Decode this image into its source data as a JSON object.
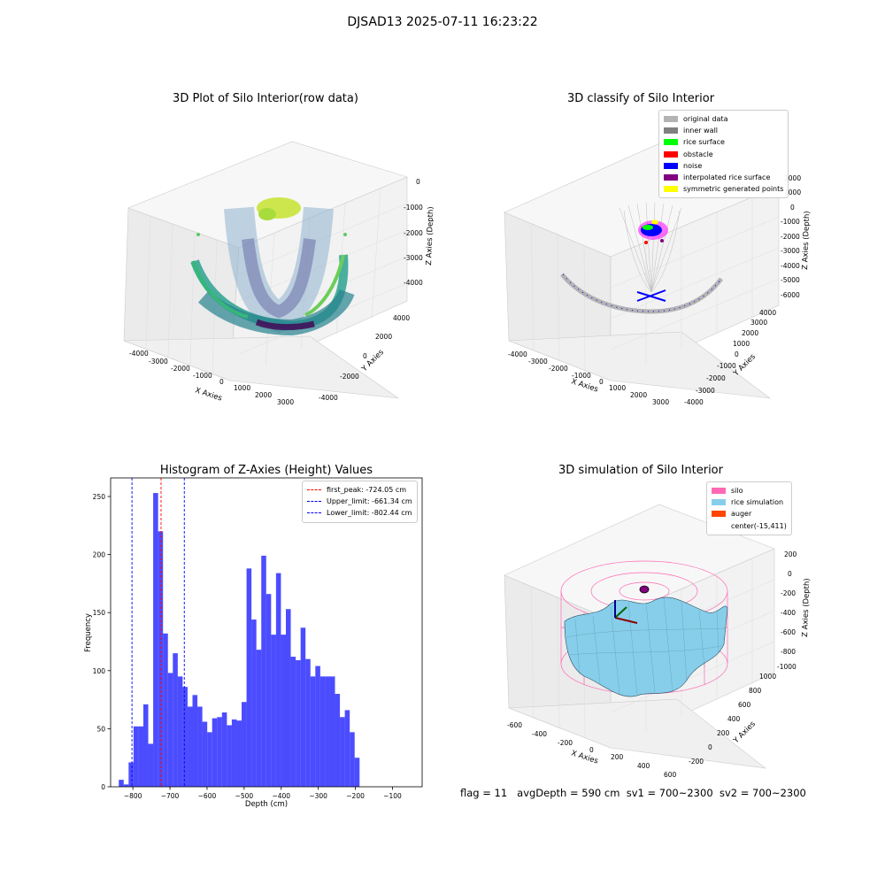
{
  "figure": {
    "suptitle": "DJSAD13 2025-07-11 16:23:22",
    "footer": {
      "flag": "flag = 11",
      "avg": "avgDepth = 590 cm",
      "sv1": "sv1 = 700~2300",
      "sv2": "sv2 = 700~2300"
    }
  },
  "panels": {
    "raw": {
      "title": "3D Plot of Silo Interior(row data)",
      "xlabel": "X Axies",
      "ylabel": "Y Axies",
      "zlabel": "Z Axies (Depth)",
      "xticks": [
        "-4000",
        "-3000",
        "-2000",
        "-1000",
        "0",
        "1000",
        "2000",
        "3000"
      ],
      "yticks": [
        "-4000",
        "-2000",
        "0",
        "2000",
        "4000"
      ],
      "zticks": [
        "0",
        "-1000",
        "-2000",
        "-3000",
        "-4000"
      ]
    },
    "classify": {
      "title": "3D classify of Silo Interior",
      "xlabel": "X Axies",
      "ylabel": "Y Axies",
      "zlabel": "Z Axies (Depth)",
      "xticks": [
        "-4000",
        "-3000",
        "-2000",
        "-1000",
        "0",
        "1000",
        "2000",
        "3000"
      ],
      "yticks": [
        "-4000",
        "-3000",
        "-2000",
        "-1000",
        "0",
        "1000",
        "2000",
        "3000",
        "4000"
      ],
      "zticks": [
        "2000",
        "1000",
        "0",
        "-1000",
        "-2000",
        "-3000",
        "-4000",
        "-5000",
        "-6000"
      ],
      "legend": [
        {
          "label": "original data",
          "color": "#b3b3b3"
        },
        {
          "label": "inner wall",
          "color": "#808080"
        },
        {
          "label": "rice surface",
          "color": "#00ff00"
        },
        {
          "label": "obstacle",
          "color": "#ff0000"
        },
        {
          "label": "noise",
          "color": "#0000ff"
        },
        {
          "label": "interpolated rice surface",
          "color": "#800080"
        },
        {
          "label": "symmetric generated points",
          "color": "#ffff00"
        }
      ]
    },
    "simulation": {
      "title": "3D simulation of Silo Interior",
      "xlabel": "X Axies",
      "ylabel": "Y Axies",
      "zlabel": "Z Axies (Depth)",
      "xticks": [
        "-600",
        "-400",
        "-200",
        "0",
        "200",
        "400",
        "600"
      ],
      "yticks": [
        "-200",
        "0",
        "200",
        "400",
        "600",
        "800",
        "1000"
      ],
      "zticks": [
        "200",
        "0",
        "-200",
        "-400",
        "-600",
        "-800",
        "-1000"
      ],
      "legend": [
        {
          "label": "silo",
          "color": "#ff69b4"
        },
        {
          "label": "rice simulation",
          "color": "#87ceeb"
        },
        {
          "label": "auger",
          "color": "#ff4500"
        },
        {
          "label": "center(-15,411)",
          "color": "none"
        }
      ]
    }
  },
  "chart_data": {
    "type": "bar",
    "title": "Histogram of Z-Axies (Height) Values",
    "xlabel": "Depth (cm)",
    "ylabel": "Frequency",
    "xlim": [
      -860,
      -20
    ],
    "ylim": [
      0,
      266
    ],
    "xticks": [
      -800,
      -700,
      -600,
      -500,
      -400,
      -300,
      -200,
      -100
    ],
    "yticks": [
      0,
      50,
      100,
      150,
      200,
      250
    ],
    "bar_color": "#0000ff",
    "bins": {
      "start": -838,
      "width": 13.25,
      "counts": [
        6,
        2,
        21,
        52,
        52,
        71,
        37,
        253,
        220,
        132,
        98,
        115,
        95,
        86,
        69,
        79,
        69,
        56,
        47,
        59,
        60,
        64,
        53,
        58,
        57,
        73,
        188,
        144,
        118,
        199,
        166,
        131,
        184,
        131,
        153,
        112,
        109,
        137,
        110,
        95,
        104,
        95,
        95,
        95,
        80,
        60,
        66,
        47,
        25
      ]
    },
    "vlines": [
      {
        "label": "first_peak: -724.05 cm",
        "x": -724.05,
        "color": "#ff0000"
      },
      {
        "label": "Upper_limit: -661.34 cm",
        "x": -661.34,
        "color": "#0000ff"
      },
      {
        "label": "Lower_limit: -802.44 cm",
        "x": -802.44,
        "color": "#0000ff"
      }
    ]
  }
}
